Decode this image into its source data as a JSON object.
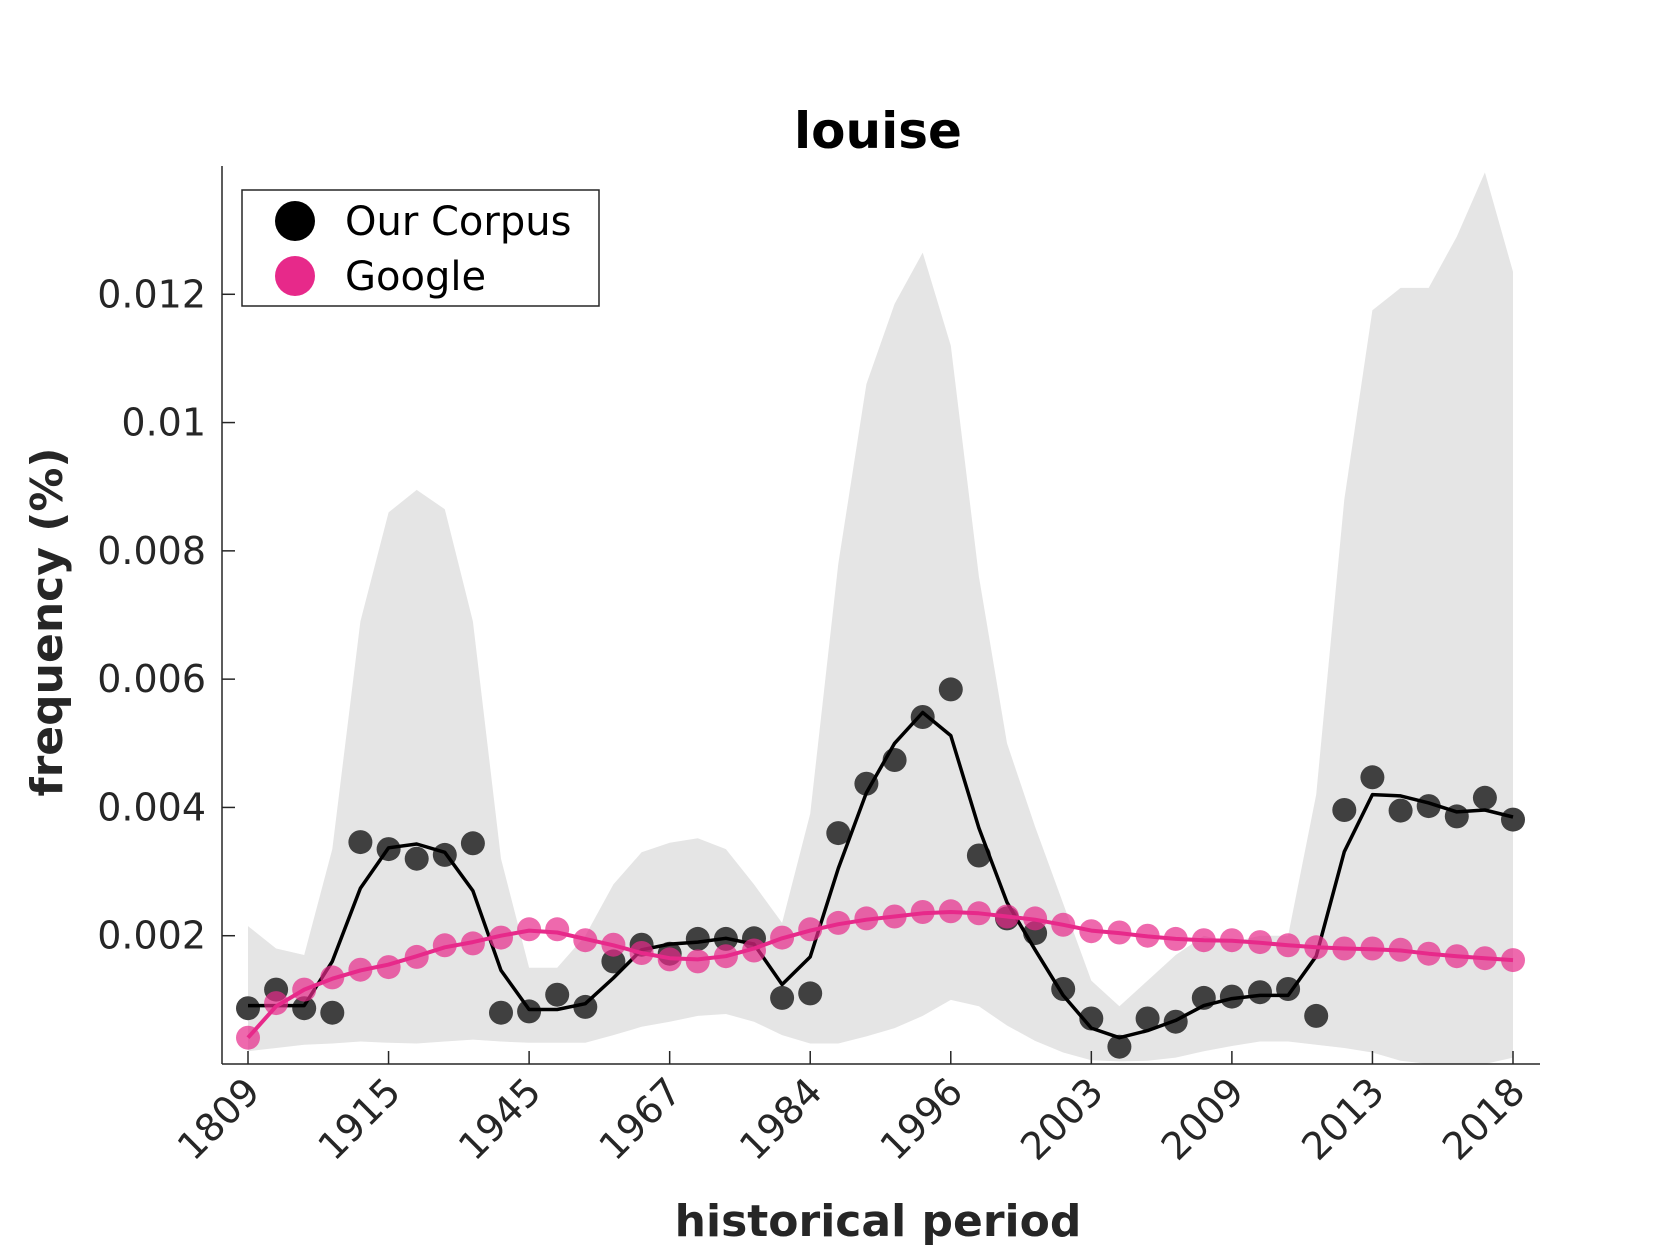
{
  "chart_data": {
    "type": "line",
    "title": "louise",
    "xlabel": "historical period",
    "ylabel": "frequency (%)",
    "ylim": [
      0,
      0.014
    ],
    "xtick_labels": [
      "1809",
      "1915",
      "1945",
      "1967",
      "1984",
      "1996",
      "2003",
      "2009",
      "2013",
      "2018"
    ],
    "ytick_labels": [
      "0.002",
      "0.004",
      "0.006",
      "0.008",
      "0.01",
      "0.012"
    ],
    "ytick_values": [
      0.002,
      0.004,
      0.006,
      0.008,
      0.01,
      0.012
    ],
    "n_points": 46,
    "legend": {
      "placement": "top-left",
      "entries": [
        "Our Corpus",
        "Google"
      ]
    },
    "colors": {
      "corpus": "#000000",
      "google": "#e7298a",
      "band": "#e5e5e5",
      "axis": "#262626"
    },
    "series": [
      {
        "name": "Our Corpus",
        "points": [
          0.00087,
          0.00116,
          0.00087,
          0.0008,
          0.00346,
          0.00335,
          0.0032,
          0.00326,
          0.00344,
          0.0008,
          0.00082,
          0.00108,
          0.00089,
          0.0016,
          0.00186,
          0.00172,
          0.00195,
          0.00195,
          0.00196,
          0.00103,
          0.0011,
          0.0036,
          0.00437,
          0.00474,
          0.00541,
          0.00584,
          0.00325,
          0.00227,
          0.00204,
          0.00117,
          0.00071,
          0.00027,
          0.00071,
          0.00066,
          0.00103,
          0.00105,
          0.00112,
          0.00117,
          0.00075,
          0.00396,
          0.00447,
          0.00395,
          0.00402,
          0.00386,
          0.00415,
          0.00381
        ],
        "smoothed": [
          0.00091,
          0.00091,
          0.00091,
          0.0016,
          0.00274,
          0.00337,
          0.00343,
          0.0033,
          0.0027,
          0.00146,
          0.00085,
          0.00085,
          0.00094,
          0.00134,
          0.00178,
          0.00187,
          0.0019,
          0.00196,
          0.00187,
          0.00124,
          0.00167,
          0.00305,
          0.00423,
          0.005,
          0.00548,
          0.00512,
          0.00368,
          0.00252,
          0.00178,
          0.00107,
          0.00056,
          0.00041,
          0.00052,
          0.00068,
          0.00091,
          0.00102,
          0.00107,
          0.00107,
          0.00168,
          0.00331,
          0.0042,
          0.00418,
          0.00407,
          0.00393,
          0.00396,
          0.00385
        ],
        "band_upper": [
          0.00215,
          0.0018,
          0.0017,
          0.00335,
          0.0069,
          0.0086,
          0.00895,
          0.00865,
          0.0069,
          0.0032,
          0.0015,
          0.0015,
          0.002,
          0.0028,
          0.0033,
          0.00345,
          0.00352,
          0.00335,
          0.0028,
          0.0022,
          0.0039,
          0.0078,
          0.0106,
          0.01185,
          0.01265,
          0.0112,
          0.0076,
          0.005,
          0.0037,
          0.0025,
          0.0013,
          0.0009,
          0.0013,
          0.0017,
          0.002,
          0.0019,
          0.002,
          0.002,
          0.0042,
          0.0088,
          0.01175,
          0.0121,
          0.0121,
          0.0129,
          0.0139,
          0.01235
        ],
        "band_lower": [
          0.0002,
          0.00025,
          0.0003,
          0.00032,
          0.00035,
          0.00033,
          0.00032,
          0.00035,
          0.00038,
          0.00035,
          0.00033,
          0.00033,
          0.00033,
          0.00045,
          0.00058,
          0.00066,
          0.00075,
          0.00078,
          0.00066,
          0.00045,
          0.00032,
          0.00032,
          0.00043,
          0.00056,
          0.00075,
          0.001,
          0.0009,
          0.0006,
          0.00036,
          0.00018,
          6e-05,
          4e-05,
          5e-05,
          0.0001,
          0.0002,
          0.00028,
          0.00035,
          0.00035,
          0.0003,
          0.00025,
          0.00018,
          5e-05,
          -5e-05,
          -5e-05,
          -5e-05,
          0.0001
        ]
      },
      {
        "name": "Google",
        "points": [
          0.00041,
          0.00095,
          0.00116,
          0.00135,
          0.00147,
          0.00151,
          0.00167,
          0.00185,
          0.00188,
          0.00197,
          0.0021,
          0.0021,
          0.00193,
          0.00186,
          0.00173,
          0.00163,
          0.0016,
          0.00168,
          0.00177,
          0.00197,
          0.0021,
          0.0022,
          0.00227,
          0.0023,
          0.00237,
          0.00238,
          0.00235,
          0.0023,
          0.00227,
          0.00217,
          0.00207,
          0.00205,
          0.002,
          0.00195,
          0.00193,
          0.00193,
          0.0019,
          0.00185,
          0.00182,
          0.0018,
          0.0018,
          0.00178,
          0.00172,
          0.00168,
          0.00165,
          0.00162
        ],
        "smoothed": [
          0.00041,
          0.0009,
          0.00116,
          0.00133,
          0.00146,
          0.00155,
          0.00168,
          0.00182,
          0.0019,
          0.002,
          0.00208,
          0.00205,
          0.00195,
          0.00185,
          0.00173,
          0.00165,
          0.00163,
          0.00168,
          0.0018,
          0.00196,
          0.00208,
          0.00218,
          0.00225,
          0.0023,
          0.00235,
          0.00237,
          0.00235,
          0.0023,
          0.00225,
          0.00217,
          0.00208,
          0.00204,
          0.00199,
          0.00195,
          0.00193,
          0.00192,
          0.00189,
          0.00185,
          0.00182,
          0.0018,
          0.00179,
          0.00177,
          0.00172,
          0.00168,
          0.00165,
          0.00162
        ]
      }
    ]
  }
}
